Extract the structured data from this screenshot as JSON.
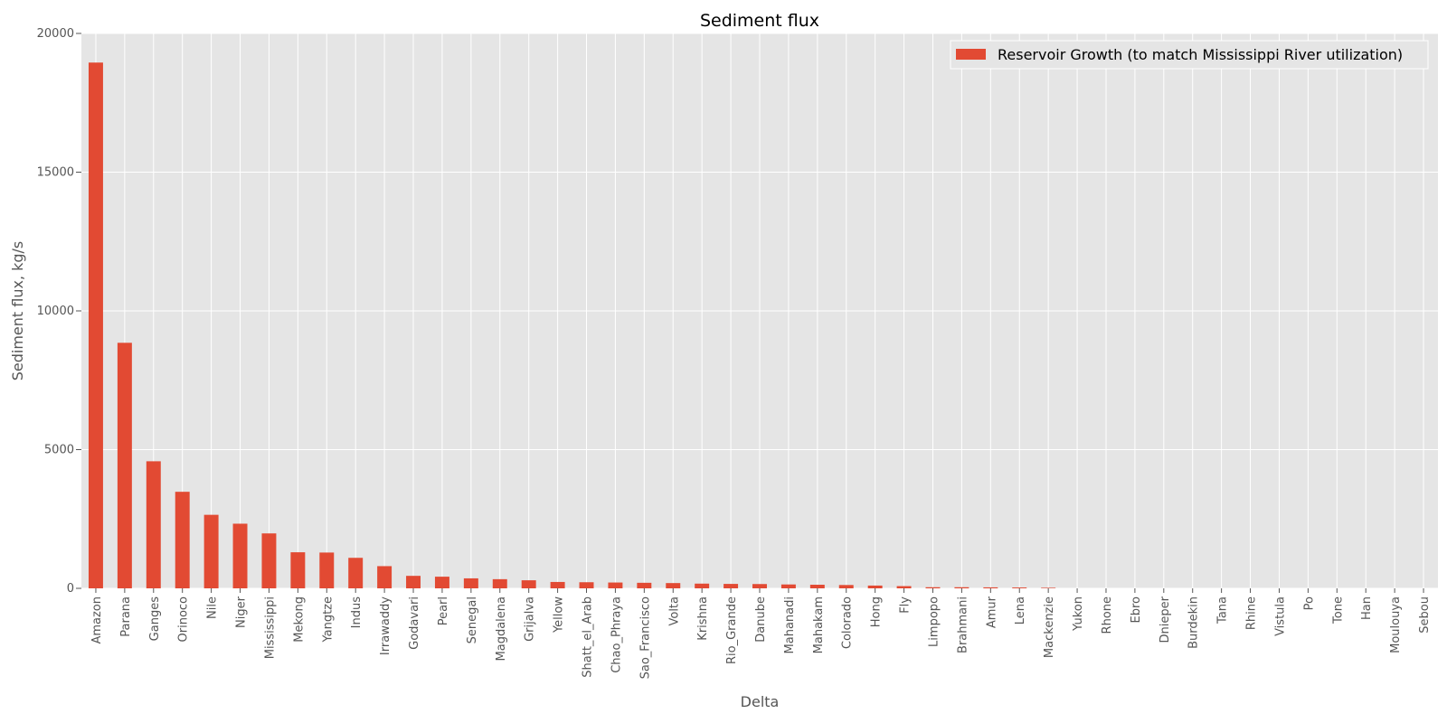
{
  "chart_data": {
    "type": "bar",
    "title": "Sediment flux",
    "xlabel": "Delta",
    "ylabel": "Sediment flux, kg/s",
    "ylim": [
      0,
      20000
    ],
    "yticks": [
      "0",
      "5000",
      "10000",
      "15000",
      "20000"
    ],
    "grid": true,
    "legend_position": "top-right",
    "colors": {
      "bar": "#E24A33",
      "plot_background": "#E5E5E5",
      "grid": "#FFFFFF"
    },
    "categories": [
      "Amazon",
      "Parana",
      "Ganges",
      "Orinoco",
      "Nile",
      "Niger",
      "Mississippi",
      "Mekong",
      "Yangtze",
      "Indus",
      "Irrawaddy",
      "Godavari",
      "Pearl",
      "Senegal",
      "Magdalena",
      "Grijalva",
      "Yellow",
      "Shatt_el_Arab",
      "Chao_Phraya",
      "Sao_Francisco",
      "Volta",
      "Krishna",
      "Rio_Grande",
      "Danube",
      "Mahanadi",
      "Mahakam",
      "Colorado",
      "Hong",
      "Fly",
      "Limpopo",
      "Brahmani",
      "Amur",
      "Lena",
      "Mackenzie",
      "Yukon",
      "Rhone",
      "Ebro",
      "Dnieper",
      "Burdekin",
      "Tana",
      "Rhine",
      "Vistula",
      "Po",
      "Tone",
      "Han",
      "Moulouya",
      "Sebou"
    ],
    "series": [
      {
        "name": "Reservoir Growth (to match Mississippi River utilization)",
        "values": [
          18950,
          8850,
          4580,
          3480,
          2650,
          2330,
          1980,
          1300,
          1290,
          1100,
          800,
          450,
          420,
          360,
          330,
          290,
          230,
          220,
          210,
          200,
          190,
          170,
          160,
          155,
          140,
          130,
          120,
          100,
          80,
          40,
          40,
          35,
          30,
          20,
          0,
          0,
          0,
          0,
          0,
          0,
          0,
          0,
          0,
          0,
          0,
          0,
          0
        ]
      }
    ]
  }
}
